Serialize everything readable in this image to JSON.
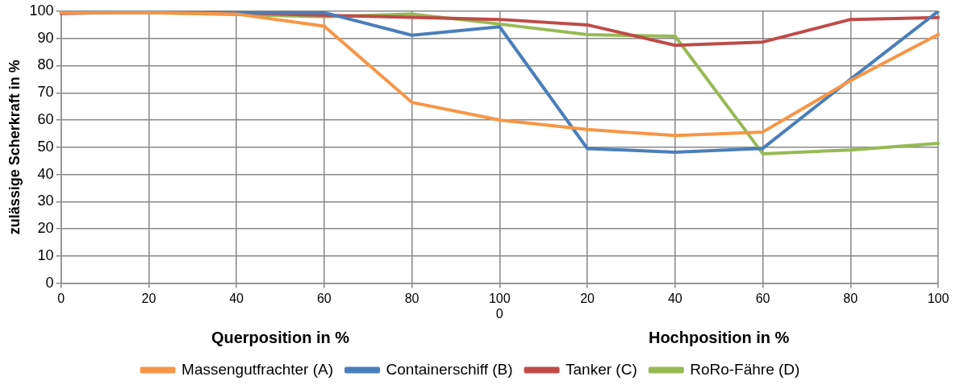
{
  "chart_data": {
    "type": "line",
    "ylabel": "zulässige Scherkraft in %",
    "xlabel": "Querposition in %",
    "annotations": [
      "Hochposition in %"
    ],
    "categories": [
      "0",
      "20",
      "40",
      "60",
      "80",
      "100\n0",
      "20",
      "40",
      "60",
      "80",
      "100"
    ],
    "series": [
      {
        "name": "Massengutfrachter (A)",
        "color": "#f79646",
        "values": [
          99.5,
          99.5,
          99,
          94.5,
          66.5,
          60,
          56.5,
          54.3,
          55.6,
          74.5,
          91.5
        ]
      },
      {
        "name": "Containerschiff (B)",
        "color": "#4a7ebb",
        "values": [
          99.5,
          99.5,
          99.5,
          99.5,
          91.2,
          94.3,
          49.5,
          48.2,
          49.6,
          75,
          100
        ]
      },
      {
        "name": "Tanker (C)",
        "color": "#be4b48",
        "values": [
          99.2,
          99.8,
          99.5,
          98.5,
          97.8,
          97,
          95,
          87.5,
          88.7,
          97,
          97.7
        ]
      },
      {
        "name": "RoRo-Fähre (D)",
        "color": "#98b954",
        "values": [
          99.5,
          99.5,
          98.8,
          98,
          99,
          95.3,
          91.4,
          90.8,
          47.6,
          49,
          51.4
        ]
      }
    ],
    "ylim": [
      0,
      100
    ],
    "yticks": [
      0,
      10,
      20,
      30,
      40,
      50,
      60,
      70,
      80,
      90,
      100
    ],
    "grid": true,
    "legend": "bottom",
    "marker": "none",
    "line_style": "solid"
  }
}
